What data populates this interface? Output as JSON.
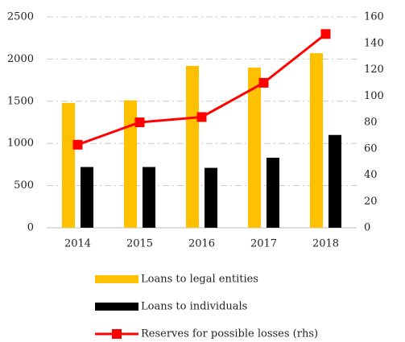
{
  "chart_data": {
    "type": "bar",
    "categories": [
      "2014",
      "2015",
      "2016",
      "2017",
      "2018"
    ],
    "series": [
      {
        "name": "Loans to legal entities",
        "color": "#ffc000",
        "type": "bar",
        "values": [
          1480,
          1510,
          1920,
          1900,
          2070
        ]
      },
      {
        "name": "Loans to individuals",
        "color": "#000000",
        "type": "bar",
        "values": [
          720,
          720,
          710,
          830,
          1100
        ]
      },
      {
        "name": "Reserves for possible losses (rhs)",
        "color": "#ff0000",
        "type": "line",
        "axis": "y2",
        "values": [
          63,
          80,
          84,
          110,
          147
        ]
      }
    ],
    "ylim": [
      0,
      2500
    ],
    "yticks": [
      0,
      500,
      1000,
      1500,
      2000,
      2500
    ],
    "y2lim": [
      0,
      160
    ],
    "y2ticks": [
      0,
      20,
      40,
      60,
      80,
      100,
      120,
      140,
      160
    ],
    "grid": true,
    "legend": "bottom"
  }
}
